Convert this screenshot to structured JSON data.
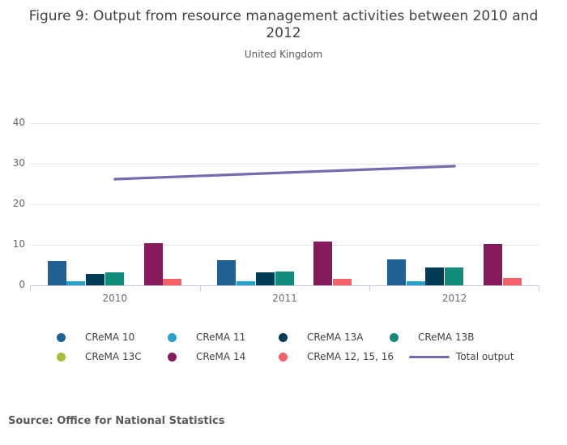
{
  "header": {
    "title": "Figure 9: Output from resource management activities between 2010 and 2012",
    "subtitle": "United Kingdom"
  },
  "source_note": "Source: Office for National Statistics",
  "chart_data": {
    "type": "bar",
    "title": "Figure 9: Output from resource management activities between 2010 and 2012",
    "subtitle": "United Kingdom",
    "categories": [
      "2010",
      "2011",
      "2012"
    ],
    "series": [
      {
        "name": "CReMA 10",
        "color": "#206095",
        "values": [
          6.1,
          6.3,
          6.5
        ]
      },
      {
        "name": "CReMA 11",
        "color": "#27a0cc",
        "values": [
          1.0,
          1.1,
          1.1
        ]
      },
      {
        "name": "CReMA 13A",
        "color": "#003c57",
        "values": [
          2.9,
          3.2,
          4.5
        ]
      },
      {
        "name": "CReMA 13B",
        "color": "#118c7b",
        "values": [
          3.3,
          3.5,
          4.5
        ]
      },
      {
        "name": "CReMA 13C",
        "color": "#a8bd3a",
        "values": [
          0,
          0,
          0
        ]
      },
      {
        "name": "CReMA 14",
        "color": "#871a5b",
        "values": [
          10.5,
          10.9,
          10.2
        ]
      },
      {
        "name": "CReMA 12, 15, 16",
        "color": "#f66068",
        "values": [
          1.7,
          1.6,
          1.8
        ]
      }
    ],
    "line_series": {
      "name": "Total output",
      "color": "#746cb1",
      "values": [
        26.2,
        27.8,
        29.4
      ]
    },
    "xlabel": "",
    "ylabel": "",
    "ylim": [
      0,
      40
    ],
    "yticks": [
      0,
      10,
      20,
      30,
      40
    ],
    "grid": true,
    "legend_position": "bottom"
  }
}
